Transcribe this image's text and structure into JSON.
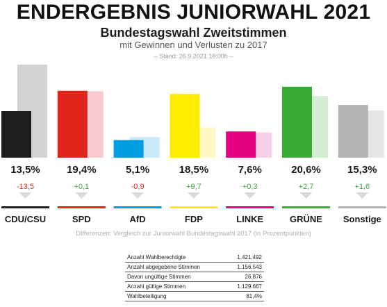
{
  "header": {
    "title": "ENDERGEBNIS JUNIORWAHL 2021",
    "subtitle": "Bundestagswahl Zweitstimmen",
    "subtitle2": "mit Gewinnen und Verlusten zu 2017",
    "stand": "– Stand: 26.9.2021 18:00h –"
  },
  "chart_data": {
    "type": "bar",
    "title": "Bundestagswahl Zweitstimmen",
    "categories": [
      "CDU/CSU",
      "SPD",
      "AfD",
      "FDP",
      "LINKE",
      "GRÜNE",
      "Sonstige"
    ],
    "series": [
      {
        "name": "2021",
        "values": [
          13.5,
          19.4,
          5.1,
          18.5,
          7.6,
          20.6,
          15.3
        ]
      },
      {
        "name": "2017",
        "values": [
          27.0,
          19.3,
          6.0,
          8.8,
          7.3,
          17.9,
          13.7
        ]
      }
    ],
    "value_labels": [
      "13,5%",
      "19,4%",
      "5,1%",
      "18,5%",
      "7,6%",
      "20,6%",
      "15,3%"
    ],
    "diff_labels": [
      "-13,5",
      "+0,1",
      "-0,9",
      "+9,7",
      "+0,3",
      "+2,7",
      "+1,6"
    ],
    "diff_values": [
      -13.5,
      0.1,
      -0.9,
      9.7,
      0.3,
      2.7,
      1.6
    ],
    "colors": [
      "#1e1e1e",
      "#e2231a",
      "#009ee0",
      "#ffed00",
      "#e3007e",
      "#3aab36",
      "#b4b4b4"
    ],
    "colors_2017": [
      "#d3d3d3",
      "#f8ccce",
      "#cbeaf7",
      "#fff8c4",
      "#f9cfe5",
      "#d5ebd2",
      "#e6e6e6"
    ],
    "ylim": [
      0,
      27
    ],
    "grid": false,
    "legend": "none"
  },
  "colors": {
    "positive": "#3aa43a",
    "negative": "#e0281e",
    "arrow": "#dadada"
  },
  "footnote": "Differenzen: Vergleich zur Juniorwahl Bundestagswahl 2017 (in Prozentpunkten)",
  "stats": [
    {
      "label": "Anzahl Wahlberechtigte",
      "value": "1.421.492"
    },
    {
      "label": "Anzahl abgegebene Stimmen",
      "value": "1.156.543"
    },
    {
      "label": "Davon ungültige Stimmen",
      "value": "26.876"
    },
    {
      "label": "Anzahl gültige Stimmen",
      "value": "1.129.667"
    },
    {
      "label": "Wahlbeteiligung",
      "value": "81,4%"
    }
  ]
}
